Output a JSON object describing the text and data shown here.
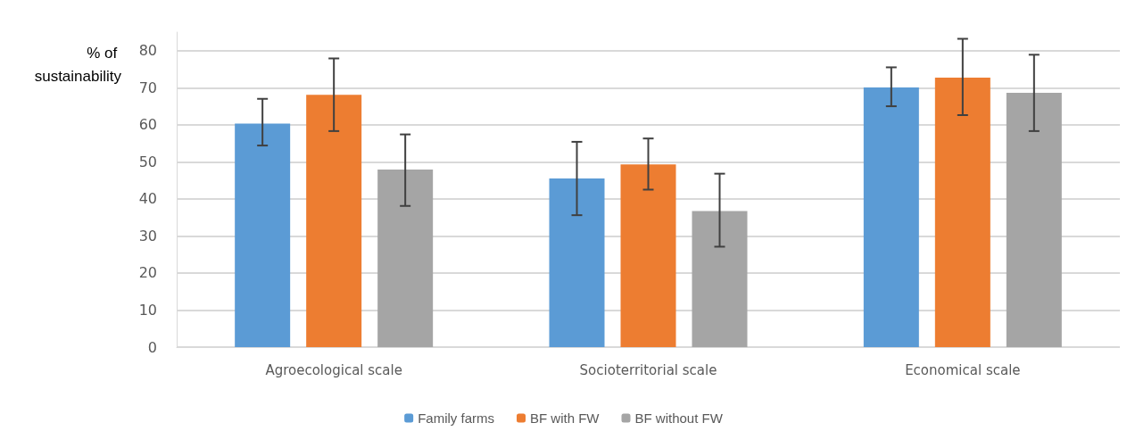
{
  "chart_data": {
    "type": "bar",
    "ylabel": "% of sustainability",
    "categories": [
      "Agroecological scale",
      "Socioterritorial scale",
      "Economical scale"
    ],
    "series": [
      {
        "name": "Family farms",
        "color": "#5b9bd5",
        "values": [
          60.3,
          45.5,
          70.1
        ],
        "errors": [
          [
            54.4,
            67.0
          ],
          [
            35.6,
            55.4
          ],
          [
            65.0,
            75.5
          ]
        ]
      },
      {
        "name": "BF with FW",
        "color": "#ed7d31",
        "values": [
          68.1,
          49.3,
          72.7
        ],
        "errors": [
          [
            58.3,
            77.9
          ],
          [
            42.5,
            56.3
          ],
          [
            62.6,
            83.2
          ]
        ]
      },
      {
        "name": "BF without FW",
        "color": "#a5a5a5",
        "values": [
          47.9,
          36.7,
          68.6
        ],
        "errors": [
          [
            38.1,
            57.4
          ],
          [
            27.1,
            46.8
          ],
          [
            58.3,
            78.9
          ]
        ]
      }
    ],
    "ylim": [
      0,
      85
    ],
    "yticks": [
      0,
      10,
      20,
      30,
      40,
      50,
      60,
      70,
      80
    ],
    "grid": "y",
    "legend": "bottom"
  }
}
